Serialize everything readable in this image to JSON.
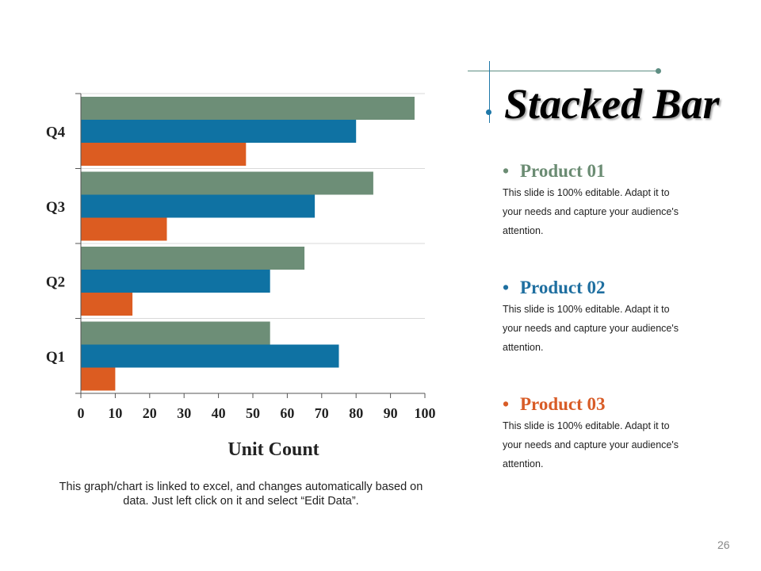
{
  "slide": {
    "title": "Stacked Bar",
    "page_number": "26",
    "footnote": "This graph/chart is linked to excel, and changes automatically based on data. Just left click on it and select “Edit Data”."
  },
  "products": [
    {
      "name": "Product 01",
      "description": "This slide is 100% editable. Adapt it to your needs and capture your audience's attention.",
      "color": "#6b8c73"
    },
    {
      "name": "Product 02",
      "description": "This slide is 100% editable. Adapt it to your needs and capture your audience's attention.",
      "color": "#1f6fa0"
    },
    {
      "name": "Product 03",
      "description": "This slide is 100% editable. Adapt it to your needs and capture your audience's attention.",
      "color": "#d85c27"
    }
  ],
  "chart_data": {
    "type": "bar",
    "orientation": "horizontal",
    "categories": [
      "Q1",
      "Q2",
      "Q3",
      "Q4"
    ],
    "series": [
      {
        "name": "Product 01",
        "values": [
          55,
          65,
          85,
          97
        ],
        "color": "#6d8e77"
      },
      {
        "name": "Product 02",
        "values": [
          75,
          55,
          68,
          80
        ],
        "color": "#0f72a3"
      },
      {
        "name": "Product 03",
        "values": [
          10,
          15,
          25,
          48
        ],
        "color": "#dc5c21"
      }
    ],
    "xlabel": "Unit Count",
    "ylabel": "",
    "xlim": [
      0,
      100
    ],
    "xticks": [
      "0",
      "10",
      "20",
      "30",
      "40",
      "50",
      "60",
      "70",
      "80",
      "90",
      "100"
    ],
    "grid": true,
    "legend": "none"
  }
}
